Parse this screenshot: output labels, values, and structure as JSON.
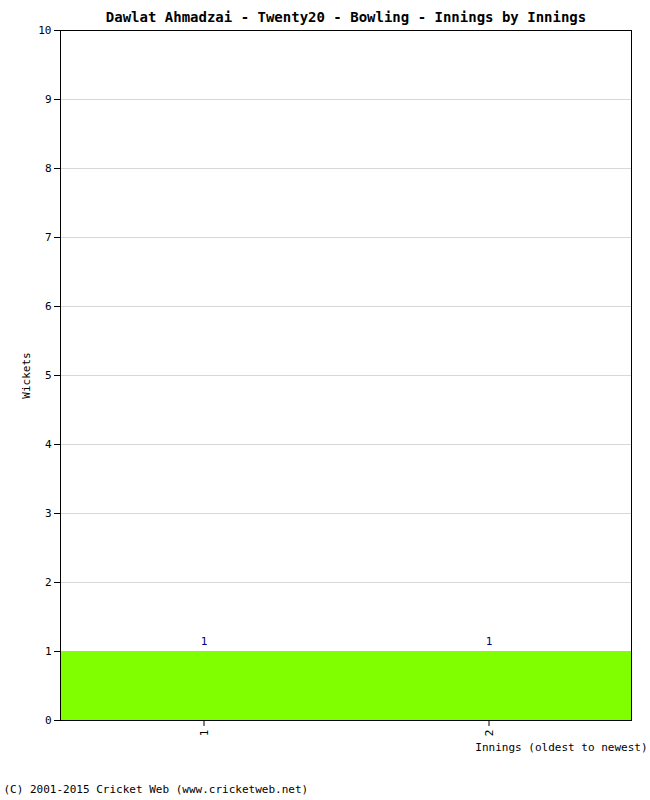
{
  "chart_data": {
    "type": "bar",
    "title": "Dawlat Ahmadzai - Twenty20 - Bowling - Innings by Innings",
    "x_label": "Innings (oldest to newest)",
    "y_label": "Wickets",
    "caption": "(C) 2001-2015 Cricket Web (www.cricketweb.net)",
    "categories": [
      "1",
      "2"
    ],
    "values": [
      1,
      1
    ],
    "color": "#80ff00",
    "ylim": [
      0,
      10
    ],
    "yticks": [
      0,
      1,
      2,
      3,
      4,
      5,
      6,
      7,
      8,
      9,
      10
    ],
    "grid": true,
    "data_labels": true
  }
}
